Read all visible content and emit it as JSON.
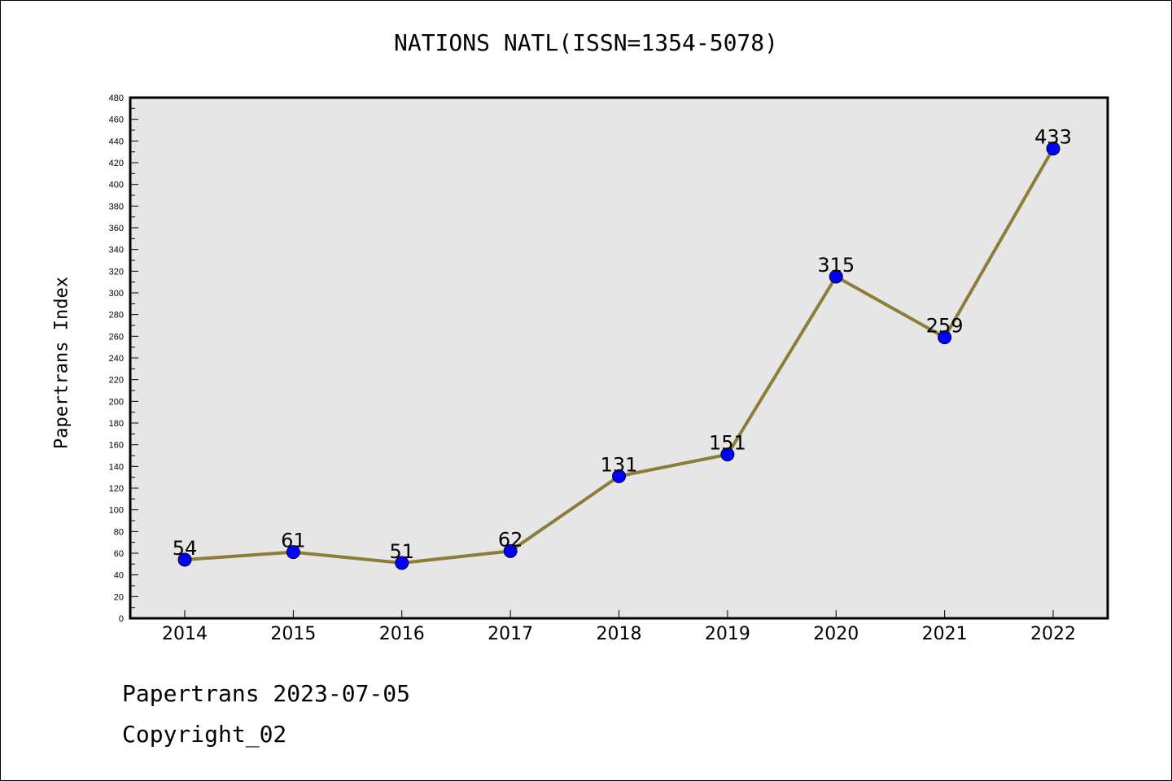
{
  "title": "NATIONS NATL(ISSN=1354-5078)",
  "footer": {
    "line1": "Papertrans 2023-07-05",
    "line2": "Copyright_02"
  },
  "colors": {
    "plot_bg": "#e6e6e6",
    "line": "#8b7d3a",
    "marker": "#0000ff",
    "axis": "#000000"
  },
  "chart_data": {
    "type": "line",
    "title": "NATIONS NATL(ISSN=1354-5078)",
    "xlabel": "",
    "ylabel": "Papertrans Index",
    "categories": [
      "2014",
      "2015",
      "2016",
      "2017",
      "2018",
      "2019",
      "2020",
      "2021",
      "2022"
    ],
    "series": [
      {
        "values": [
          54,
          61,
          51,
          62,
          131,
          151,
          315,
          259,
          433
        ]
      }
    ],
    "ylim": [
      0,
      480
    ],
    "yticks": [
      0,
      20,
      40,
      60,
      80,
      100,
      120,
      140,
      160,
      180,
      200,
      220,
      240,
      260,
      280,
      300,
      320,
      340,
      360,
      380,
      400,
      420,
      440,
      460,
      480
    ],
    "data_labels": true,
    "grid": false,
    "legend": "none"
  }
}
